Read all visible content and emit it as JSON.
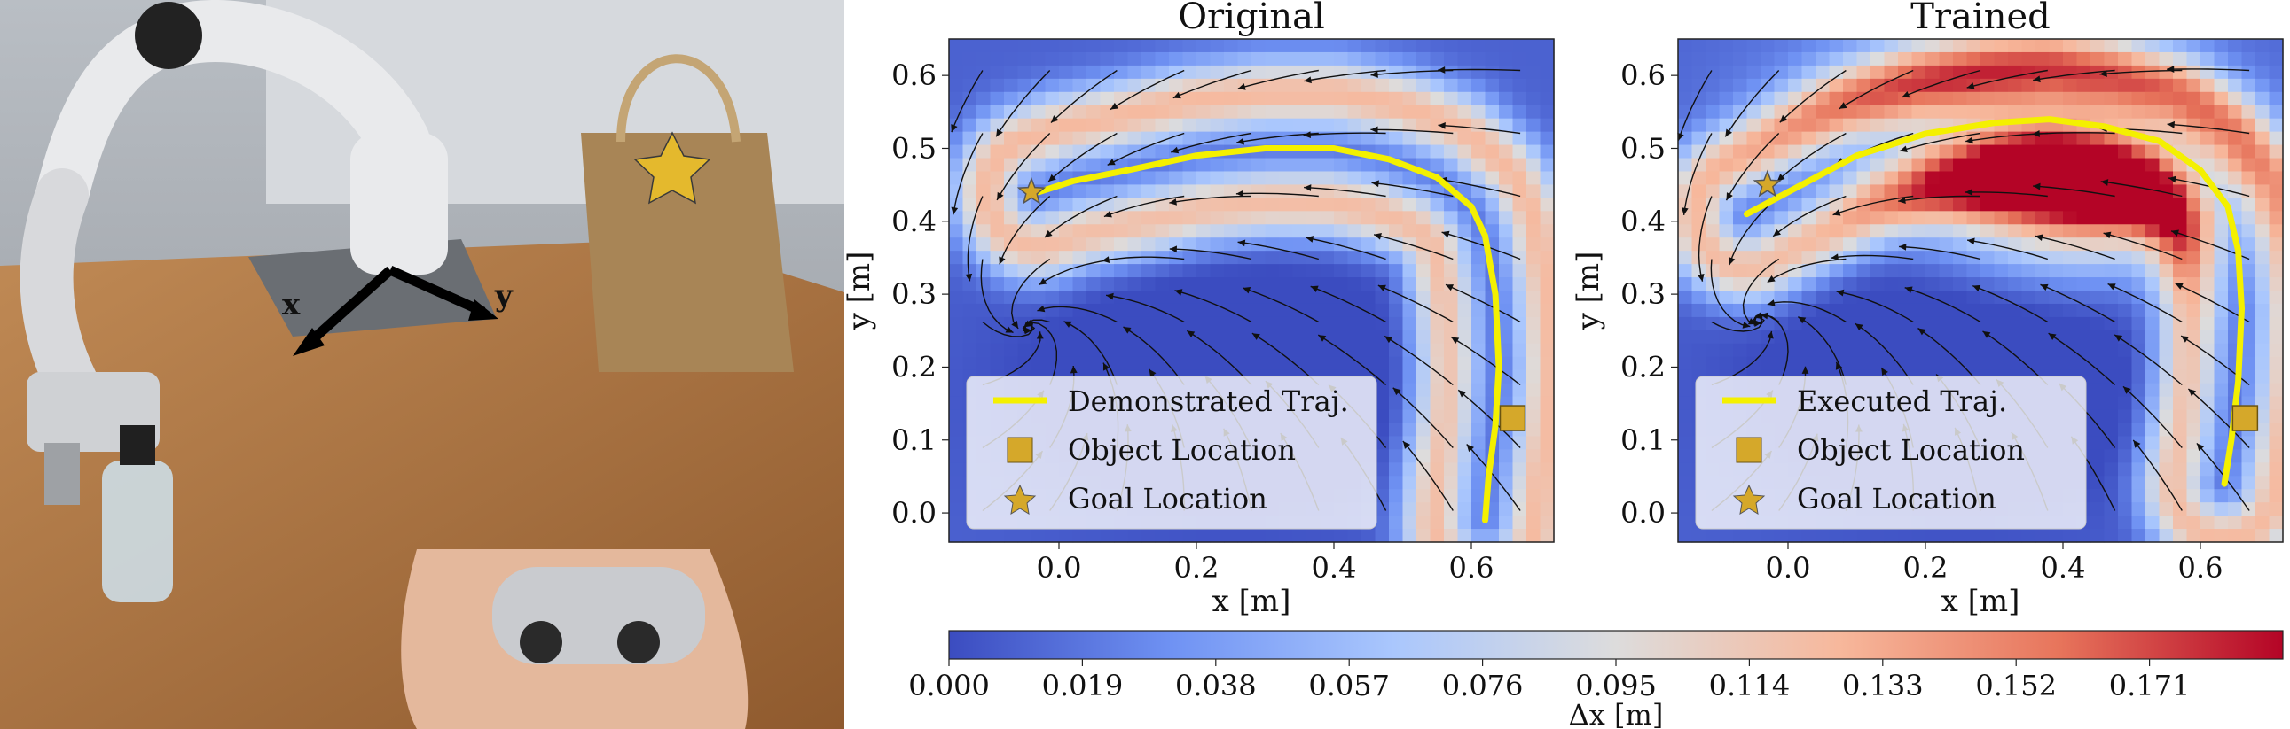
{
  "photo": {
    "axis_x_label": "x",
    "axis_y_label": "y"
  },
  "colorbar": {
    "label": "Δx [m]",
    "ticks": [
      "0.000",
      "0.019",
      "0.038",
      "0.057",
      "0.076",
      "0.095",
      "0.114",
      "0.133",
      "0.152",
      "0.171"
    ],
    "range": [
      0.0,
      0.19
    ],
    "cmap": "coolwarm",
    "colors": [
      "#3b4cc0",
      "#6f92f3",
      "#aac7fd",
      "#dddcdc",
      "#f7b89c",
      "#e7745b",
      "#b40426"
    ]
  },
  "chart_data": [
    {
      "type": "streamplot",
      "title": "Original",
      "xlabel": "x [m]",
      "ylabel": "y [m]",
      "xlim": [
        -0.16,
        0.72
      ],
      "ylim": [
        -0.04,
        0.65
      ],
      "xticks": [
        "0.0",
        "0.2",
        "0.4",
        "0.6"
      ],
      "yticks": [
        "0.0",
        "0.1",
        "0.2",
        "0.3",
        "0.4",
        "0.5",
        "0.6"
      ],
      "trajectory_x": [
        0.62,
        0.625,
        0.635,
        0.64,
        0.635,
        0.62,
        0.6,
        0.55,
        0.48,
        0.4,
        0.3,
        0.2,
        0.1,
        0.02,
        -0.03
      ],
      "trajectory_y": [
        -0.01,
        0.05,
        0.12,
        0.2,
        0.3,
        0.38,
        0.42,
        0.46,
        0.485,
        0.5,
        0.5,
        0.49,
        0.47,
        0.455,
        0.44
      ],
      "object_location": [
        0.66,
        0.13
      ],
      "goal_location": [
        -0.04,
        0.44
      ],
      "legend": [
        "Demonstrated Traj.",
        "Object Location",
        "Goal Location"
      ],
      "legend_location": "lower center"
    },
    {
      "type": "streamplot",
      "title": "Trained",
      "xlabel": "x [m]",
      "ylabel": "y [m]",
      "xlim": [
        -0.16,
        0.72
      ],
      "ylim": [
        -0.04,
        0.65
      ],
      "xticks": [
        "0.0",
        "0.2",
        "0.4",
        "0.6"
      ],
      "yticks": [
        "0.0",
        "0.1",
        "0.2",
        "0.3",
        "0.4",
        "0.5",
        "0.6"
      ],
      "trajectory_x": [
        0.635,
        0.645,
        0.655,
        0.66,
        0.655,
        0.64,
        0.6,
        0.54,
        0.46,
        0.38,
        0.3,
        0.2,
        0.1,
        0.02,
        -0.06
      ],
      "trajectory_y": [
        0.04,
        0.1,
        0.18,
        0.28,
        0.36,
        0.42,
        0.47,
        0.51,
        0.53,
        0.54,
        0.535,
        0.52,
        0.49,
        0.45,
        0.41
      ],
      "object_location": [
        0.665,
        0.13
      ],
      "goal_location": [
        -0.03,
        0.45
      ],
      "legend": [
        "Executed Traj.",
        "Object Location",
        "Goal Location"
      ],
      "legend_location": "lower center"
    }
  ]
}
